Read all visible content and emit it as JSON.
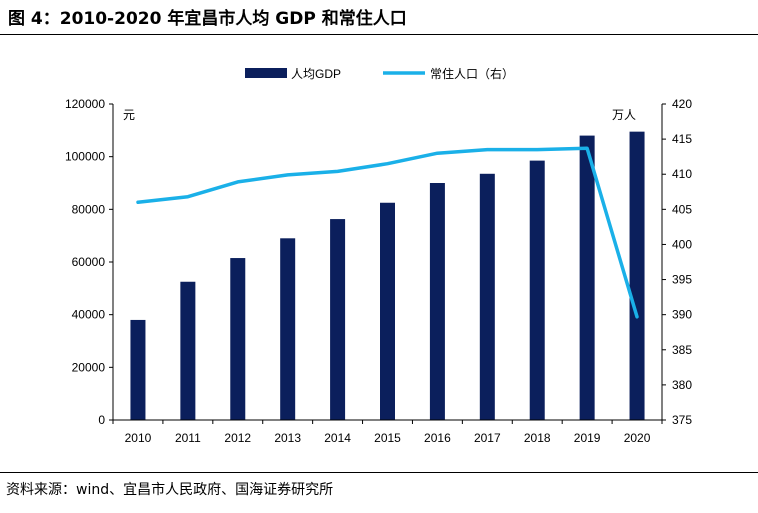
{
  "figure": {
    "title": "图 4：2010-2020 年宜昌市人均 GDP 和常住人口",
    "source": "资料来源：wind、宜昌市人民政府、国海证券研究所"
  },
  "chart_data": {
    "type": "bar",
    "categories": [
      "2010",
      "2011",
      "2012",
      "2013",
      "2014",
      "2015",
      "2016",
      "2017",
      "2018",
      "2019",
      "2020"
    ],
    "series": [
      {
        "name": "人均GDP",
        "type": "bar",
        "axis": "left",
        "color": "#0b1f5c",
        "values": [
          38000,
          52500,
          61500,
          69000,
          76300,
          82500,
          90000,
          93500,
          98500,
          108000,
          109500
        ]
      },
      {
        "name": "常住人口（右）",
        "type": "line",
        "axis": "right",
        "color": "#1ab0e8",
        "values": [
          406.0,
          406.8,
          408.9,
          409.9,
          410.4,
          411.5,
          413.0,
          413.5,
          413.5,
          413.7,
          389.7
        ]
      }
    ],
    "y_left": {
      "unit": "元",
      "ylim": [
        0,
        120000
      ],
      "ticks": [
        0,
        20000,
        40000,
        60000,
        80000,
        100000,
        120000
      ],
      "tick_labels": [
        "0",
        "20000",
        "40000",
        "60000",
        "80000",
        "100000",
        "120000"
      ]
    },
    "y_right": {
      "unit": "万人",
      "ylim": [
        375,
        420
      ],
      "ticks": [
        375,
        380,
        385,
        390,
        395,
        400,
        405,
        410,
        415,
        420
      ],
      "tick_labels": [
        "375",
        "380",
        "385",
        "390",
        "395",
        "400",
        "405",
        "410",
        "415",
        "420"
      ]
    },
    "legend_position": "top-center",
    "grid": false
  }
}
